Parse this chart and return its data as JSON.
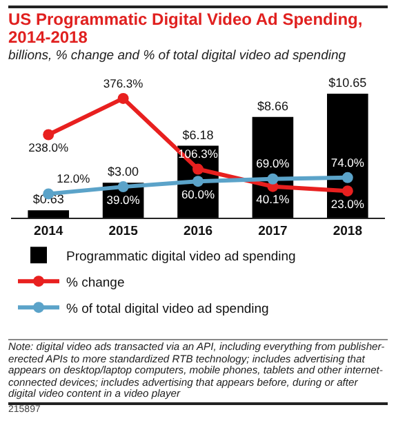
{
  "chart_data": {
    "type": "bar",
    "title": "US Programmatic Digital Video Ad Spending, 2014-2018",
    "subtitle": "billions, % change and % of total digital video ad spending",
    "categories": [
      "2014",
      "2015",
      "2016",
      "2017",
      "2018"
    ],
    "series": [
      {
        "name": "Programmatic digital video ad spending",
        "color": "#000000",
        "values": [
          0.63,
          3.0,
          6.18,
          8.66,
          10.65
        ],
        "value_labels": [
          "$0.63",
          "$3.00",
          "$6.18",
          "$8.66",
          "$10.65"
        ]
      },
      {
        "name": "% change",
        "type": "line",
        "axis": "y2",
        "color": "#e8201f",
        "values": [
          238.0,
          376.3,
          106.3,
          40.1,
          23.0
        ],
        "value_labels": [
          "238.0%",
          "376.3%",
          "106.3%",
          "40.1%",
          "23.0%"
        ]
      },
      {
        "name": "% of total digital video ad spending",
        "type": "line",
        "axis": "y2",
        "color": "#5ba3c9",
        "values": [
          12.0,
          39.0,
          60.0,
          69.0,
          74.0
        ],
        "value_labels": [
          "12.0%",
          "39.0%",
          "60.0%",
          "69.0%",
          "74.0%"
        ]
      }
    ],
    "tick_labels": "x",
    "marker": "circle",
    "line_style": "solid",
    "grid": false,
    "legend": "bottom",
    "annotations": [
      "Note: digital video ads transacted via an API, including everything from publisher-erected APIs to more standardized RTB technology; includes advertising that appears on desktop/laptop computers, mobile phones, tablets and other internet-connected devices; includes advertising that appears before, during or after digital video content in a video player",
      "215897"
    ]
  }
}
